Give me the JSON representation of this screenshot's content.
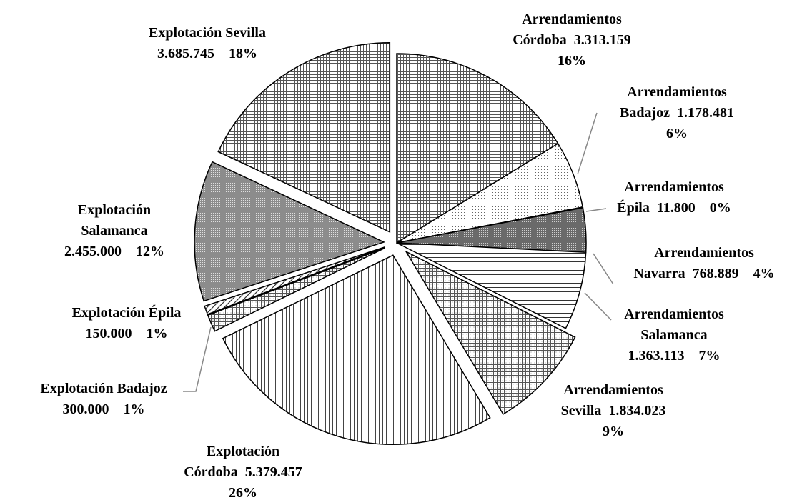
{
  "chart_data": {
    "type": "pie",
    "title": "",
    "slices": [
      {
        "name": "Arrendamientos Córdoba",
        "value": 3313159,
        "percent": "16%",
        "label_lines": [
          "Arrendamientos",
          "Córdoba  3.313.159",
          "16%"
        ],
        "pattern": "dense-grid",
        "exploded": false
      },
      {
        "name": "Arrendamientos Badajoz",
        "value": 1178481,
        "percent": "6%",
        "label_lines": [
          "Arrendamientos",
          "Badajoz  1.178.481",
          "6%"
        ],
        "pattern": "dots",
        "exploded": false
      },
      {
        "name": "Arrendamientos Épila",
        "value": 11800,
        "percent": "0%",
        "label_lines": [
          "Arrendamientos",
          "Épila  11.800    0%"
        ],
        "pattern": "white",
        "exploded": false
      },
      {
        "name": "Arrendamientos Navarra",
        "value": 768889,
        "percent": "4%",
        "label_lines": [
          "Arrendamientos",
          "Navarra  768.889    4%"
        ],
        "pattern": "dark-dots",
        "exploded": false
      },
      {
        "name": "Arrendamientos Salamanca",
        "value": 1363113,
        "percent": "7%",
        "label_lines": [
          "Arrendamientos",
          "Salamanca",
          "1.363.113    7%"
        ],
        "pattern": "horizontal-lines",
        "exploded": false
      },
      {
        "name": "Arrendamientos Sevilla",
        "value": 1834023,
        "percent": "9%",
        "label_lines": [
          "Arrendamientos",
          "Sevilla  1.834.023",
          "9%"
        ],
        "pattern": "fine-grid",
        "exploded": true
      },
      {
        "name": "Explotación Córdoba",
        "value": 5379457,
        "percent": "26%",
        "label_lines": [
          "Explotación",
          "Córdoba  5.379.457",
          "26%"
        ],
        "pattern": "vertical-lines",
        "exploded": true
      },
      {
        "name": "Explotación Badajoz",
        "value": 300000,
        "percent": "1%",
        "label_lines": [
          "Explotación Badajoz",
          "300.000    1%"
        ],
        "pattern": "fine-grid",
        "exploded": true
      },
      {
        "name": "Explotación Épila",
        "value": 150000,
        "percent": "1%",
        "label_lines": [
          "Explotación Épila",
          "150.000    1%"
        ],
        "pattern": "diagonal-lines",
        "exploded": true
      },
      {
        "name": "Explotación Salamanca",
        "value": 2455000,
        "percent": "12%",
        "label_lines": [
          "Explotación",
          "Salamanca",
          "2.455.000    12%"
        ],
        "pattern": "dark-dots-light",
        "exploded": true
      },
      {
        "name": "Explotación Sevilla",
        "value": 3685745,
        "percent": "18%",
        "label_lines": [
          "Explotación Sevilla",
          "3.685.745    18%"
        ],
        "pattern": "coarse-grid",
        "exploded": true
      }
    ],
    "start_direction": "12 o'clock",
    "direction": "clockwise",
    "legend": "none"
  }
}
